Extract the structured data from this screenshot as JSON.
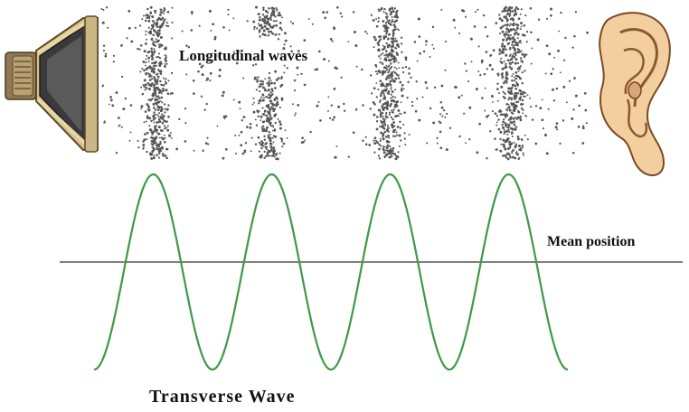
{
  "labels": {
    "longitudinal": "Longitudinal waves",
    "mean_position": "Mean position",
    "transverse": "Transverse Wave"
  },
  "colors": {
    "wave": "#3d9a47",
    "mean_line": "#6e6e6e",
    "particles": "#555555",
    "speaker_body": "#c8b48a",
    "speaker_cone": "#2a2a2a",
    "ear_skin": "#f3cfa0",
    "ear_outline": "#7a4a22"
  },
  "icons": {
    "source": "speaker-icon",
    "receiver": "ear-icon"
  },
  "compressions": 4,
  "wave_cycles": 4
}
